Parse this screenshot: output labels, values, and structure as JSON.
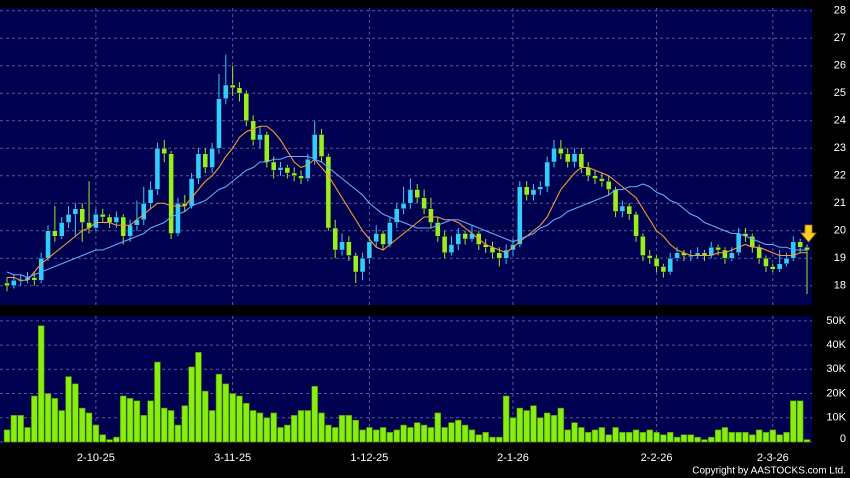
{
  "chart_data": {
    "type": "candlestick",
    "categories": [
      null,
      null,
      null,
      null,
      null,
      null,
      null,
      null,
      null,
      null,
      null,
      null,
      null,
      "2-10-25",
      null,
      null,
      null,
      null,
      null,
      null,
      null,
      null,
      null,
      null,
      null,
      null,
      null,
      null,
      null,
      null,
      null,
      null,
      null,
      "3-11-25",
      null,
      null,
      null,
      null,
      null,
      null,
      null,
      null,
      null,
      null,
      null,
      null,
      null,
      null,
      null,
      null,
      null,
      null,
      null,
      "1-12-25",
      null,
      null,
      null,
      null,
      null,
      null,
      null,
      null,
      null,
      null,
      null,
      null,
      null,
      null,
      null,
      null,
      null,
      null,
      null,
      null,
      "2-1-26",
      null,
      null,
      null,
      null,
      null,
      null,
      null,
      null,
      null,
      null,
      null,
      null,
      null,
      null,
      null,
      null,
      null,
      null,
      null,
      null,
      "2-2-26",
      null,
      null,
      null,
      null,
      null,
      null,
      null,
      null,
      null,
      null,
      null,
      null,
      null,
      null,
      null,
      null,
      "2-3-26",
      null,
      null,
      null,
      null,
      null
    ],
    "open": [
      18.1,
      18.0,
      18.2,
      18.2,
      18.3,
      18.2,
      19.0,
      20.0,
      19.8,
      20.3,
      20.6,
      20.8,
      20.3,
      20.1,
      20.6,
      20.5,
      20.3,
      20.5,
      19.8,
      20.2,
      20.4,
      21.0,
      21.5,
      23.0,
      22.8,
      19.9,
      21.0,
      20.9,
      21.9,
      22.8,
      22.3,
      23.0,
      24.8,
      25.3,
      25.2,
      25.0,
      24.0,
      23.3,
      23.5,
      22.5,
      22.2,
      22.3,
      22.1,
      22.0,
      21.9,
      22.6,
      23.5,
      22.7,
      20.1,
      19.3,
      19.6,
      19.1,
      18.5,
      19.0,
      19.6,
      19.9,
      19.5,
      20.3,
      20.8,
      21.0,
      21.5,
      21.2,
      20.8,
      20.3,
      19.8,
      19.2,
      19.5,
      19.9,
      19.7,
      19.9,
      19.5,
      19.4,
      19.2,
      19.0,
      19.3,
      19.5,
      21.6,
      21.3,
      21.5,
      21.6,
      22.5,
      23.0,
      22.8,
      22.5,
      22.8,
      22.3,
      22.0,
      21.9,
      21.8,
      21.5,
      20.7,
      20.9,
      20.6,
      19.8,
      19.1,
      19.0,
      18.7,
      18.5,
      19.0,
      19.2,
      19.1,
      19.1,
      19.2,
      19.1,
      19.4,
      19.3,
      19.0,
      19.2,
      19.9,
      19.8,
      19.4,
      19.0,
      18.7,
      18.6,
      18.8,
      19.0,
      19.6,
      19.4
    ],
    "high": [
      18.3,
      18.4,
      18.4,
      18.5,
      18.5,
      19.2,
      20.2,
      20.9,
      20.5,
      20.9,
      21.0,
      21.0,
      21.8,
      20.8,
      20.8,
      20.6,
      20.7,
      20.6,
      20.4,
      21.1,
      21.6,
      21.8,
      23.2,
      23.3,
      22.9,
      21.2,
      21.3,
      22.1,
      23.0,
      23.0,
      23.2,
      25.7,
      26.4,
      26.0,
      25.4,
      25.1,
      24.2,
      23.8,
      23.6,
      22.7,
      22.5,
      22.4,
      22.3,
      22.2,
      22.8,
      24.0,
      23.7,
      22.8,
      20.4,
      19.9,
      19.8,
      19.2,
      19.2,
      19.8,
      20.2,
      20.0,
      20.5,
      21.0,
      21.6,
      21.9,
      21.7,
      21.5,
      21.2,
      20.5,
      20.0,
      19.8,
      20.1,
      20.0,
      20.2,
      20.0,
      19.7,
      19.6,
      19.4,
      19.5,
      19.7,
      21.8,
      21.8,
      21.7,
      21.8,
      22.7,
      23.3,
      23.3,
      23.0,
      23.0,
      23.0,
      22.5,
      22.2,
      22.1,
      22.0,
      21.6,
      21.1,
      21.0,
      20.7,
      19.9,
      19.3,
      19.1,
      18.8,
      19.2,
      19.4,
      19.3,
      19.3,
      19.4,
      19.3,
      19.6,
      19.5,
      19.4,
      19.4,
      20.1,
      20.1,
      19.9,
      19.5,
      19.1,
      18.8,
      19.3,
      19.2,
      19.8,
      19.7,
      19.5
    ],
    "low": [
      17.8,
      17.9,
      18.0,
      18.1,
      18.0,
      18.1,
      18.9,
      19.6,
      19.7,
      20.1,
      19.8,
      19.6,
      19.9,
      20.0,
      20.3,
      20.1,
      20.1,
      19.5,
      19.6,
      20.0,
      20.2,
      20.8,
      21.3,
      22.5,
      19.7,
      19.8,
      20.7,
      20.8,
      21.7,
      22.1,
      22.1,
      22.8,
      24.6,
      24.9,
      24.7,
      23.8,
      23.1,
      23.0,
      22.3,
      21.9,
      22.0,
      21.9,
      21.8,
      21.7,
      21.8,
      22.4,
      22.5,
      20.0,
      19.0,
      19.1,
      18.9,
      18.1,
      18.2,
      18.8,
      19.4,
      19.3,
      19.4,
      20.1,
      20.6,
      20.8,
      21.0,
      20.6,
      20.1,
      19.6,
      19.0,
      19.1,
      19.3,
      19.5,
      19.6,
      19.3,
      19.2,
      19.0,
      18.7,
      18.8,
      19.1,
      19.4,
      21.1,
      21.1,
      21.3,
      21.4,
      22.3,
      22.6,
      22.3,
      22.3,
      22.1,
      21.8,
      21.7,
      21.6,
      21.3,
      20.5,
      20.5,
      20.4,
      19.6,
      18.9,
      18.8,
      18.5,
      18.3,
      18.4,
      18.9,
      18.9,
      18.9,
      19.0,
      18.9,
      19.0,
      19.1,
      18.8,
      18.9,
      19.1,
      19.6,
      19.2,
      18.8,
      18.5,
      18.5,
      18.5,
      18.7,
      18.9,
      19.2,
      17.7
    ],
    "close": [
      18.0,
      18.2,
      18.2,
      18.3,
      18.2,
      19.0,
      20.0,
      19.8,
      20.3,
      20.6,
      20.8,
      20.3,
      20.1,
      20.6,
      20.5,
      20.3,
      20.5,
      19.8,
      20.2,
      20.4,
      21.0,
      21.5,
      23.0,
      22.8,
      19.9,
      21.0,
      20.9,
      21.9,
      22.8,
      22.3,
      23.0,
      24.8,
      25.3,
      25.2,
      25.0,
      24.0,
      23.3,
      23.5,
      22.5,
      22.2,
      22.3,
      22.1,
      22.0,
      21.9,
      22.6,
      23.5,
      22.7,
      20.1,
      19.3,
      19.6,
      19.1,
      18.5,
      19.0,
      19.6,
      19.9,
      19.5,
      20.3,
      20.8,
      21.0,
      21.5,
      21.2,
      20.8,
      20.3,
      19.8,
      19.2,
      19.5,
      19.9,
      19.7,
      19.9,
      19.5,
      19.4,
      19.2,
      19.0,
      19.3,
      19.5,
      21.6,
      21.3,
      21.5,
      21.6,
      22.5,
      23.0,
      22.8,
      22.5,
      22.8,
      22.3,
      22.0,
      21.9,
      21.8,
      21.5,
      20.7,
      20.9,
      20.6,
      19.8,
      19.1,
      19.0,
      18.7,
      18.5,
      19.0,
      19.2,
      19.1,
      19.1,
      19.2,
      19.1,
      19.4,
      19.3,
      19.0,
      19.2,
      19.9,
      19.8,
      19.4,
      19.0,
      18.7,
      18.6,
      18.8,
      19.0,
      19.6,
      19.4,
      19.3
    ],
    "up_color": "#33ccff",
    "down_color": "#99ee22",
    "series": [
      {
        "color": "#ff9933",
        "values": [
          18.3,
          18.3,
          18.2,
          18.2,
          18.5,
          18.8,
          19.0,
          19.2,
          19.4,
          19.6,
          19.8,
          20.0,
          20.1,
          20.3,
          20.3,
          20.3,
          20.2,
          20.2,
          20.2,
          20.4,
          20.6,
          20.8,
          21.0,
          21.0,
          20.9,
          20.9,
          20.9,
          21.2,
          21.5,
          21.8,
          22.0,
          22.3,
          22.7,
          23.0,
          23.4,
          23.6,
          23.7,
          23.8,
          23.8,
          23.6,
          23.3,
          22.9,
          22.5,
          22.3,
          22.4,
          22.6,
          22.3,
          22.0,
          21.6,
          21.2,
          20.8,
          20.4,
          20.0,
          19.7,
          19.4,
          19.3,
          19.5,
          19.7,
          19.9,
          20.1,
          20.3,
          20.5,
          20.5,
          20.5,
          20.4,
          20.4,
          20.3,
          20.1,
          19.9,
          19.7,
          19.5,
          19.4,
          19.3,
          19.2,
          19.4,
          19.6,
          19.8,
          20.0,
          20.2,
          20.5,
          21.0,
          21.5,
          21.8,
          22.1,
          22.3,
          22.3,
          22.2,
          22.1,
          22.0,
          21.8,
          21.6,
          21.4,
          21.2,
          20.8,
          20.4,
          20.0,
          19.8,
          19.5,
          19.3,
          19.2,
          19.1,
          19.1,
          19.1,
          19.1,
          19.2,
          19.2,
          19.3,
          19.4,
          19.5,
          19.4,
          19.4,
          19.3,
          19.2,
          19.1,
          19.1,
          19.1,
          19.2,
          19.2
        ]
      },
      {
        "color": "#66aaff",
        "values": [
          18.5,
          18.4,
          18.4,
          18.3,
          18.4,
          18.5,
          18.6,
          18.7,
          18.8,
          18.9,
          19.0,
          19.1,
          19.2,
          19.3,
          19.3,
          19.4,
          19.5,
          19.6,
          19.7,
          19.8,
          19.9,
          20.1,
          20.2,
          20.3,
          20.5,
          20.6,
          20.7,
          20.9,
          21.0,
          21.1,
          21.3,
          21.5,
          21.6,
          21.8,
          22.0,
          22.2,
          22.3,
          22.5,
          22.5,
          22.6,
          22.6,
          22.7,
          22.7,
          22.7,
          22.7,
          22.6,
          22.5,
          22.3,
          22.1,
          21.9,
          21.7,
          21.5,
          21.3,
          21.0,
          20.8,
          20.6,
          20.5,
          20.4,
          20.3,
          20.2,
          20.1,
          20.1,
          20.1,
          20.2,
          20.3,
          20.4,
          20.4,
          20.3,
          20.2,
          20.1,
          20.0,
          19.9,
          19.8,
          19.7,
          19.6,
          19.7,
          19.8,
          19.9,
          20.1,
          20.2,
          20.4,
          20.5,
          20.7,
          20.8,
          20.9,
          21.0,
          21.1,
          21.2,
          21.3,
          21.5,
          21.5,
          21.6,
          21.6,
          21.7,
          21.6,
          21.4,
          21.3,
          21.1,
          21.0,
          20.8,
          20.6,
          20.5,
          20.3,
          20.2,
          20.1,
          20.0,
          19.9,
          19.9,
          19.8,
          19.7,
          19.6,
          19.5,
          19.5,
          19.4,
          19.4,
          19.3,
          19.3,
          19.3
        ]
      }
    ],
    "ylim": [
      17.3,
      28.1
    ],
    "yticks": [
      18,
      19,
      20,
      21,
      22,
      23,
      24,
      25,
      26,
      27,
      28
    ],
    "grid": true,
    "volume": {
      "color": "#88ee11",
      "ylim": [
        0,
        52
      ],
      "yticks": [
        0,
        {
          "value": 10,
          "label": "10K"
        },
        {
          "value": 20,
          "label": "20K"
        },
        {
          "value": 30,
          "label": "30K"
        },
        {
          "value": 40,
          "label": "40K"
        },
        {
          "value": 50,
          "label": "50K"
        }
      ],
      "values": [
        5,
        11,
        11,
        6,
        19,
        48,
        20,
        18,
        13,
        27,
        24,
        14,
        12,
        7,
        3,
        1,
        2,
        19,
        18,
        17,
        11,
        17,
        33,
        14,
        13,
        7,
        15,
        31,
        37,
        21,
        13,
        28,
        24,
        20,
        19,
        16,
        13,
        12,
        10,
        12,
        6,
        7,
        11,
        13,
        13,
        23,
        12,
        7,
        6,
        11,
        11,
        9,
        5,
        6,
        5,
        6,
        4,
        5,
        7,
        6,
        8,
        7,
        6,
        12,
        6,
        8,
        9,
        7,
        5,
        3,
        4,
        2,
        2,
        19,
        10,
        14,
        13,
        15,
        10,
        12,
        11,
        14,
        5,
        8,
        6,
        4,
        5,
        6,
        3,
        6,
        4,
        4,
        5,
        4,
        5,
        4,
        3,
        4,
        2,
        3,
        3,
        2,
        1,
        2,
        5,
        6,
        4,
        4,
        4,
        3,
        5,
        4,
        5,
        3,
        4,
        17,
        17,
        1
      ]
    },
    "copyright": "Copyright by AASTOCKS.com Ltd."
  }
}
